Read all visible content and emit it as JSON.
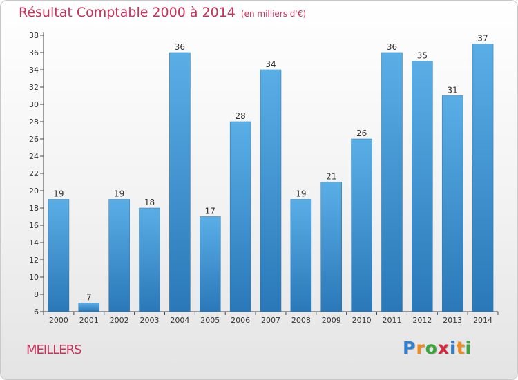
{
  "chart_data": {
    "type": "bar",
    "title": "Résultat Comptable 2000 à 2014",
    "subtitle": "(en milliers d'€)",
    "categories": [
      "2000",
      "2001",
      "2002",
      "2003",
      "2004",
      "2005",
      "2006",
      "2007",
      "2008",
      "2009",
      "2010",
      "2011",
      "2012",
      "2013",
      "2014"
    ],
    "values": [
      19,
      7,
      19,
      18,
      36,
      17,
      28,
      34,
      19,
      21,
      26,
      36,
      35,
      31,
      37
    ],
    "ylim": [
      6,
      38
    ],
    "yticks": [
      6,
      8,
      10,
      12,
      14,
      16,
      18,
      20,
      22,
      24,
      26,
      28,
      30,
      32,
      34,
      36,
      38
    ],
    "grid": false,
    "legend": "none",
    "bar_color_light": "#5aaee6",
    "bar_color_dark": "#2a78b8"
  },
  "footer": {
    "town": "MEILLERS",
    "logo_letters": [
      {
        "ch": "P",
        "color": "#2f7fd0"
      },
      {
        "ch": "r",
        "color": "#f08c1e"
      },
      {
        "ch": "o",
        "color": "#3aa63a"
      },
      {
        "ch": "x",
        "color": "#d8263c"
      },
      {
        "ch": "i",
        "color": "#2f7fd0"
      },
      {
        "ch": "t",
        "color": "#f08c1e"
      },
      {
        "ch": "i",
        "color": "#3aa63a"
      }
    ]
  }
}
